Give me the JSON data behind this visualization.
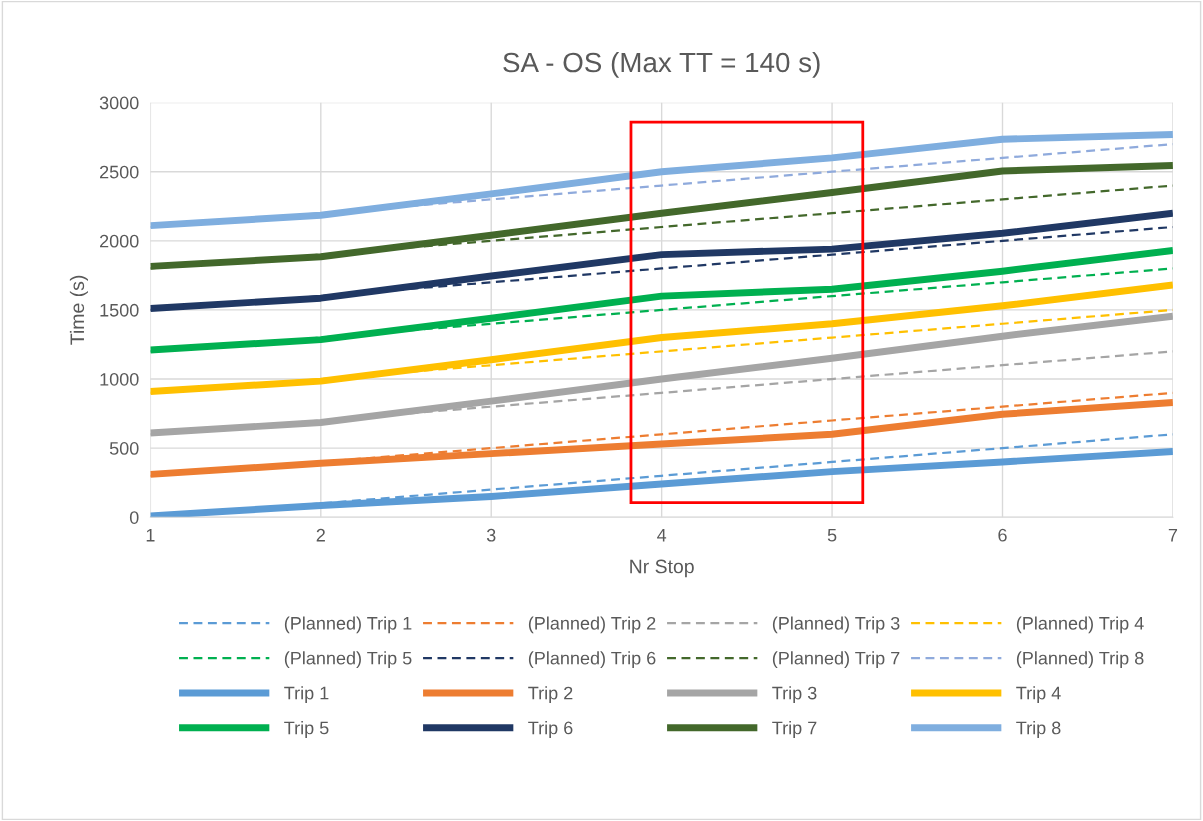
{
  "chart_data": {
    "type": "line",
    "title": "SA - OS (Max TT = 140 s)",
    "xlabel": "Nr Stop",
    "ylabel": "Time (s)",
    "x": [
      1,
      2,
      3,
      4,
      5,
      6,
      7
    ],
    "xlim": [
      1,
      7
    ],
    "xticks": [
      1,
      2,
      3,
      4,
      5,
      6,
      7
    ],
    "ylim": [
      0,
      3000
    ],
    "yticks": [
      0,
      500,
      1000,
      1500,
      2000,
      2500,
      3000
    ],
    "grid": true,
    "legend": "bottom",
    "marker": "none",
    "series": [
      {
        "name": "(Planned) Trip 1",
        "color": "#5b9bd5",
        "line_style": "dashed",
        "values": [
          0,
          100,
          200,
          300,
          400,
          500,
          600
        ]
      },
      {
        "name": "(Planned) Trip 2",
        "color": "#ed7d31",
        "line_style": "dashed",
        "values": [
          300,
          400,
          500,
          600,
          700,
          800,
          900
        ]
      },
      {
        "name": "(Planned) Trip 3",
        "color": "#a5a5a5",
        "line_style": "dashed",
        "values": [
          600,
          700,
          800,
          900,
          1000,
          1100,
          1200
        ]
      },
      {
        "name": "(Planned) Trip 4",
        "color": "#ffc000",
        "line_style": "dashed",
        "values": [
          900,
          1000,
          1100,
          1200,
          1300,
          1400,
          1500
        ]
      },
      {
        "name": "(Planned) Trip 5",
        "color": "#00b050",
        "line_style": "dashed",
        "values": [
          1200,
          1300,
          1400,
          1500,
          1600,
          1700,
          1800
        ]
      },
      {
        "name": "(Planned) Trip 6",
        "color": "#203864",
        "line_style": "dashed",
        "values": [
          1500,
          1600,
          1700,
          1800,
          1900,
          2000,
          2100
        ]
      },
      {
        "name": "(Planned) Trip 7",
        "color": "#43682b",
        "line_style": "dashed",
        "values": [
          1800,
          1900,
          2000,
          2100,
          2200,
          2300,
          2400
        ]
      },
      {
        "name": "(Planned) Trip 8",
        "color": "#8faadc",
        "line_style": "dashed",
        "values": [
          2100,
          2200,
          2300,
          2400,
          2500,
          2600,
          2700
        ]
      },
      {
        "name": "Trip 1",
        "color": "#5b9bd5",
        "line_style": "solid",
        "values": [
          10,
          85,
          150,
          240,
          330,
          400,
          475
        ]
      },
      {
        "name": "Trip 2",
        "color": "#ed7d31",
        "line_style": "solid",
        "values": [
          310,
          390,
          460,
          530,
          600,
          745,
          830
        ]
      },
      {
        "name": "Trip 3",
        "color": "#a5a5a5",
        "line_style": "solid",
        "values": [
          610,
          685,
          840,
          1000,
          1150,
          1310,
          1455
        ]
      },
      {
        "name": "Trip 4",
        "color": "#ffc000",
        "line_style": "solid",
        "values": [
          910,
          985,
          1140,
          1300,
          1400,
          1530,
          1680
        ]
      },
      {
        "name": "Trip 5",
        "color": "#00b050",
        "line_style": "solid",
        "values": [
          1210,
          1285,
          1440,
          1600,
          1650,
          1780,
          1930
        ]
      },
      {
        "name": "Trip 6",
        "color": "#203864",
        "line_style": "solid",
        "values": [
          1510,
          1585,
          1745,
          1900,
          1940,
          2055,
          2200
        ]
      },
      {
        "name": "Trip 7",
        "color": "#43682b",
        "line_style": "solid",
        "values": [
          1815,
          1885,
          2040,
          2200,
          2350,
          2505,
          2545
        ]
      },
      {
        "name": "Trip 8",
        "color": "#7faedf",
        "line_style": "solid",
        "values": [
          2110,
          2185,
          2340,
          2500,
          2600,
          2735,
          2770
        ]
      }
    ]
  }
}
